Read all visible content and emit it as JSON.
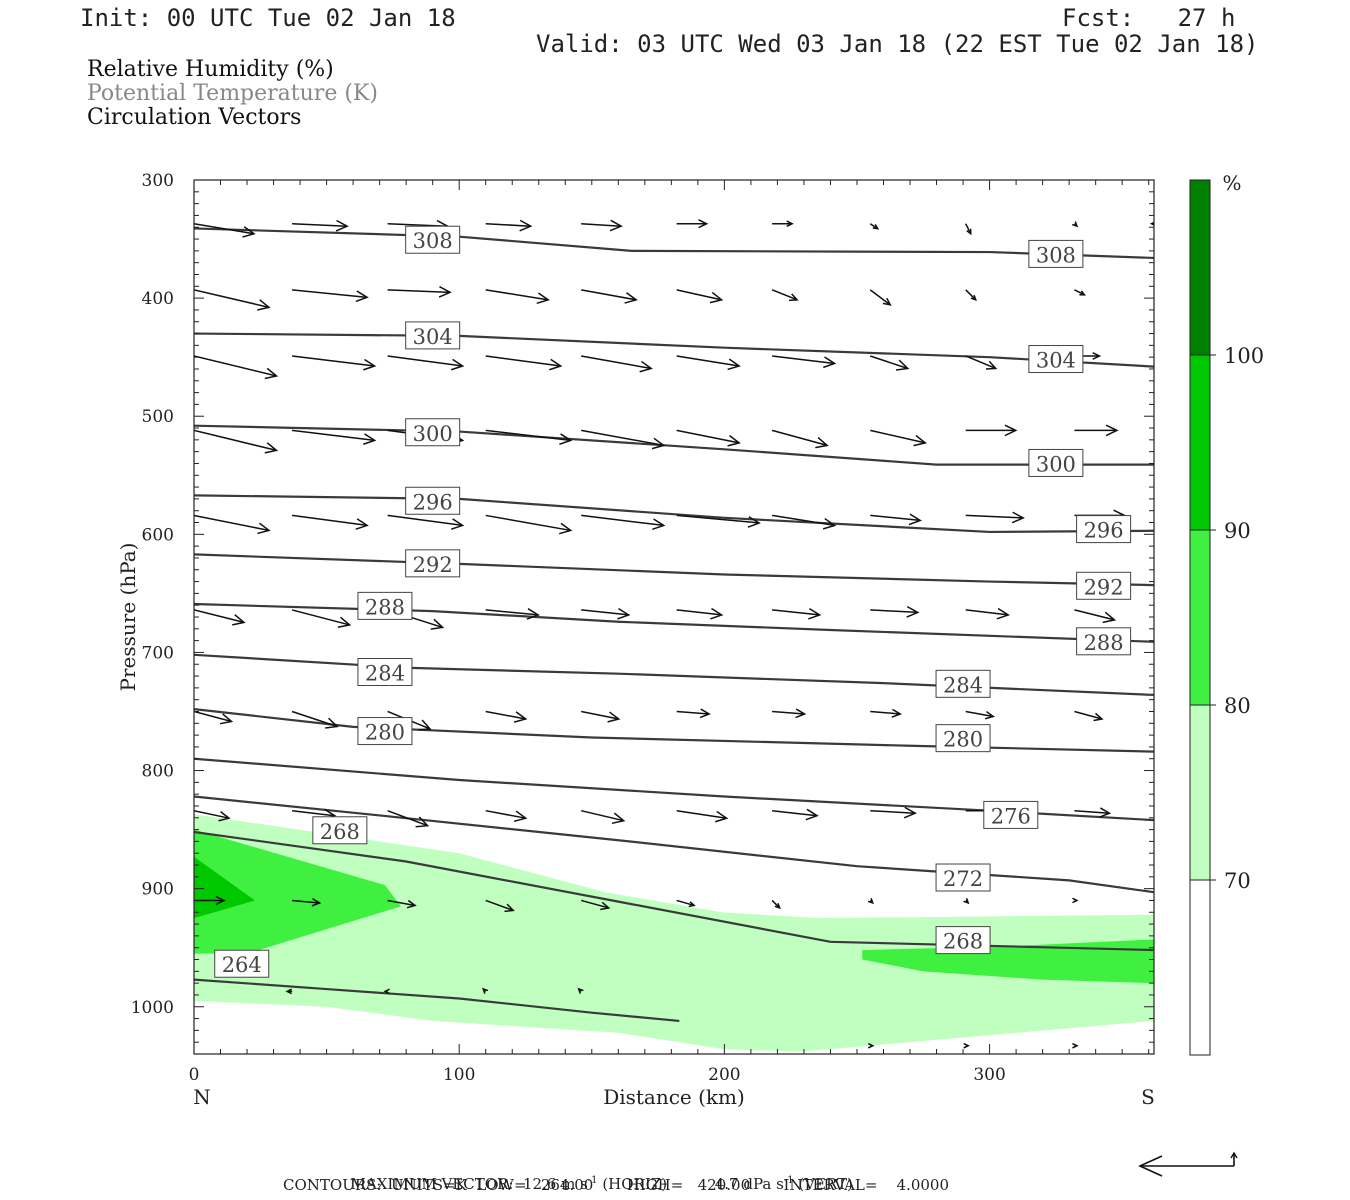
{
  "header": {
    "init": "Init: 00 UTC Tue 02 Jan 18",
    "fcst": "Fcst:   27 h",
    "valid": "Valid: 03 UTC Wed 03 Jan 18 (22 EST Tue 02 Jan 18)"
  },
  "legend": {
    "line1": "Relative Humidity (%)",
    "line2": "Potential Temperature (K)",
    "line3": "Circulation Vectors"
  },
  "footer": {
    "max_vector_label": "MAXIMUM VECTOR:",
    "max_vector_horiz": "12.6 m s",
    "horiz_tag": "(HORIZ)",
    "max_vector_vert": "4.7 dPa s",
    "vert_tag": "(VERT)",
    "exp": "-1",
    "contours": "CONTOURS:  UNITS=K  LOW=   264.00       HIGH=   420.00       INTERVAL=    4.0000"
  },
  "colors": {
    "rh_70_80": "#c0ffc0",
    "rh_80_90": "#40f040",
    "rh_90_100": "#00c800",
    "rh_100": "#008000",
    "theta": "#3a3a3a",
    "vector": "#111111"
  },
  "chart_data": {
    "type": "cross-section",
    "xlabel": "Distance (km)",
    "ylabel": "Pressure (hPa)",
    "xlim": [
      0,
      362
    ],
    "ylim": [
      300,
      1040
    ],
    "x_ticks": [
      0,
      100,
      200,
      300
    ],
    "y_ticks": [
      300,
      400,
      500,
      600,
      700,
      800,
      900,
      1000
    ],
    "x_end_labels": {
      "left": "N",
      "right": "S"
    },
    "colorbar": {
      "unit": "%",
      "levels": [
        70,
        80,
        90,
        100
      ],
      "colors": [
        "#ffffff",
        "#c0ffc0",
        "#40f040",
        "#00c800",
        "#008000"
      ]
    },
    "theta_contours": [
      {
        "value": 264,
        "label": "264",
        "points": [
          [
            0,
            977
          ],
          [
            50,
            985
          ],
          [
            100,
            993
          ],
          [
            150,
            1005
          ],
          [
            183,
            1012
          ]
        ],
        "labels_at": [
          [
            18,
            964
          ]
        ]
      },
      {
        "value": 268,
        "label": "268",
        "points": [
          [
            0,
            852
          ],
          [
            80,
            877
          ],
          [
            160,
            911
          ],
          [
            240,
            945
          ],
          [
            362,
            952
          ]
        ],
        "labels_at": [
          [
            55,
            851
          ],
          [
            290,
            944
          ]
        ]
      },
      {
        "value": 272,
        "label": "272",
        "points": [
          [
            0,
            822
          ],
          [
            70,
            838
          ],
          [
            160,
            859
          ],
          [
            250,
            881
          ],
          [
            330,
            893
          ],
          [
            362,
            903
          ]
        ],
        "labels_at": [
          [
            290,
            891
          ]
        ]
      },
      {
        "value": 276,
        "label": "276",
        "points": [
          [
            0,
            790
          ],
          [
            100,
            808
          ],
          [
            200,
            822
          ],
          [
            300,
            834
          ],
          [
            362,
            842
          ]
        ],
        "labels_at": [
          [
            308,
            838
          ]
        ]
      },
      {
        "value": 280,
        "label": "280",
        "points": [
          [
            0,
            748
          ],
          [
            60,
            763
          ],
          [
            150,
            772
          ],
          [
            270,
            779
          ],
          [
            362,
            784
          ]
        ],
        "labels_at": [
          [
            72,
            767
          ],
          [
            290,
            773
          ]
        ]
      },
      {
        "value": 284,
        "label": "284",
        "points": [
          [
            0,
            702
          ],
          [
            80,
            713
          ],
          [
            160,
            718
          ],
          [
            260,
            726
          ],
          [
            362,
            736
          ]
        ],
        "labels_at": [
          [
            72,
            717
          ],
          [
            290,
            727
          ]
        ]
      },
      {
        "value": 288,
        "label": "288",
        "points": [
          [
            0,
            659
          ],
          [
            90,
            665
          ],
          [
            160,
            674
          ],
          [
            240,
            681
          ],
          [
            362,
            691
          ]
        ],
        "labels_at": [
          [
            72,
            661
          ],
          [
            343,
            691
          ]
        ]
      },
      {
        "value": 292,
        "label": "292",
        "points": [
          [
            0,
            617
          ],
          [
            100,
            625
          ],
          [
            200,
            634
          ],
          [
            300,
            640
          ],
          [
            362,
            643
          ]
        ],
        "labels_at": [
          [
            90,
            625
          ],
          [
            343,
            644
          ]
        ]
      },
      {
        "value": 296,
        "label": "296",
        "points": [
          [
            0,
            567
          ],
          [
            100,
            570
          ],
          [
            200,
            586
          ],
          [
            300,
            598
          ],
          [
            362,
            597
          ]
        ],
        "labels_at": [
          [
            90,
            572
          ],
          [
            343,
            596
          ]
        ]
      },
      {
        "value": 300,
        "label": "300",
        "points": [
          [
            0,
            508
          ],
          [
            100,
            513
          ],
          [
            200,
            528
          ],
          [
            280,
            541
          ],
          [
            362,
            541
          ]
        ],
        "labels_at": [
          [
            90,
            514
          ],
          [
            325,
            540
          ]
        ]
      },
      {
        "value": 304,
        "label": "304",
        "points": [
          [
            0,
            430
          ],
          [
            100,
            432
          ],
          [
            200,
            442
          ],
          [
            300,
            450
          ],
          [
            362,
            458
          ]
        ],
        "labels_at": [
          [
            90,
            432
          ],
          [
            325,
            452
          ]
        ]
      },
      {
        "value": 308,
        "label": "308",
        "points": [
          [
            0,
            341
          ],
          [
            100,
            348
          ],
          [
            165,
            360
          ],
          [
            300,
            361
          ],
          [
            362,
            366
          ]
        ],
        "labels_at": [
          [
            90,
            351
          ],
          [
            325,
            363
          ]
        ]
      }
    ],
    "rh_regions": [
      {
        "level": 70,
        "points": [
          [
            0,
            837
          ],
          [
            100,
            870
          ],
          [
            155,
            903
          ],
          [
            199,
            920
          ],
          [
            236,
            925
          ],
          [
            362,
            922
          ],
          [
            362,
            1012
          ],
          [
            290,
            1026
          ],
          [
            229,
            1038
          ],
          [
            200,
            1036
          ],
          [
            160,
            1022
          ],
          [
            90,
            1012
          ],
          [
            50,
            1000
          ],
          [
            0,
            995
          ]
        ]
      },
      {
        "level": 80,
        "points": [
          [
            0,
            850
          ],
          [
            72,
            897
          ],
          [
            78,
            915
          ],
          [
            20,
            955
          ],
          [
            0,
            955
          ]
        ]
      },
      {
        "level": 80,
        "points": [
          [
            252,
            952
          ],
          [
            305,
            949
          ],
          [
            362,
            943
          ],
          [
            362,
            980
          ],
          [
            320,
            977
          ],
          [
            275,
            970
          ],
          [
            252,
            960
          ]
        ]
      },
      {
        "level": 90,
        "points": [
          [
            0,
            873
          ],
          [
            23,
            910
          ],
          [
            0,
            925
          ]
        ]
      }
    ],
    "vector_rows": [
      {
        "p": 337,
        "x": [
          0,
          37,
          73,
          110,
          146,
          182,
          218,
          255,
          291,
          332,
          362
        ],
        "u": [
          24,
          22,
          24,
          18,
          16,
          12,
          8,
          3,
          2,
          1,
          -1
        ],
        "w": [
          -4,
          -1,
          -1,
          -1,
          -1,
          0,
          0,
          -2,
          -4,
          -1,
          0
        ]
      },
      {
        "p": 393,
        "x": [
          0,
          37,
          73,
          110,
          146,
          182,
          218,
          255,
          291,
          332
        ],
        "u": [
          30,
          30,
          25,
          25,
          22,
          18,
          10,
          8,
          4,
          4
        ],
        "w": [
          -7,
          -3,
          -1,
          -4,
          -4,
          -4,
          -4,
          -6,
          -4,
          -2
        ]
      },
      {
        "p": 449,
        "x": [
          0,
          37,
          73,
          110,
          146,
          182,
          218,
          255,
          291,
          332
        ],
        "u": [
          33,
          33,
          30,
          30,
          28,
          25,
          25,
          15,
          12,
          10
        ],
        "w": [
          -8,
          -4,
          -4,
          -4,
          -5,
          -4,
          -3,
          -5,
          -5,
          0
        ]
      },
      {
        "p": 512,
        "x": [
          0,
          37,
          73,
          110,
          146,
          182,
          218,
          255,
          291,
          332
        ],
        "u": [
          33,
          33,
          30,
          34,
          33,
          25,
          22,
          22,
          20,
          17
        ],
        "w": [
          -8,
          -4,
          -4,
          -4,
          -6,
          -5,
          -6,
          -5,
          0,
          0
        ]
      },
      {
        "p": 584,
        "x": [
          0,
          37,
          73,
          110,
          146,
          182,
          218,
          255,
          291,
          332
        ],
        "u": [
          30,
          30,
          30,
          34,
          33,
          33,
          25,
          20,
          23,
          20
        ],
        "w": [
          -6,
          -4,
          -4,
          -6,
          -4,
          -3,
          -4,
          -2,
          -1,
          0
        ]
      },
      {
        "p": 664,
        "x": [
          0,
          37,
          73,
          110,
          146,
          182,
          218,
          255,
          291,
          332
        ],
        "u": [
          20,
          23,
          22,
          21,
          19,
          18,
          19,
          19,
          17,
          16
        ],
        "w": [
          -5,
          -6,
          -7,
          -2,
          -2,
          -2,
          -2,
          -1,
          -2,
          -4
        ]
      },
      {
        "p": 750,
        "x": [
          0,
          37,
          73,
          110,
          146,
          182,
          218,
          255,
          291,
          332
        ],
        "u": [
          15,
          18,
          17,
          16,
          15,
          13,
          13,
          12,
          11,
          11
        ],
        "w": [
          -4,
          -6,
          -7,
          -3,
          -3,
          -1,
          -1,
          -1,
          -2,
          -3
        ]
      },
      {
        "p": 834,
        "x": [
          0,
          37,
          73,
          110,
          146,
          182,
          218,
          255,
          291,
          332
        ],
        "u": [
          14,
          17,
          16,
          16,
          17,
          20,
          18,
          18,
          12,
          14
        ],
        "w": [
          -3,
          -2,
          -6,
          -3,
          -4,
          -3,
          -2,
          -1,
          0,
          -1
        ]
      },
      {
        "p": 910,
        "x": [
          0,
          37,
          73,
          110,
          146,
          182,
          218,
          255,
          291,
          332
        ],
        "u": [
          12,
          11,
          11,
          11,
          11,
          7,
          3,
          1,
          1,
          1
        ],
        "w": [
          0,
          -1,
          -2,
          -4,
          -3,
          -2,
          -3,
          -1,
          -1,
          0
        ]
      },
      {
        "p": 987,
        "x": [
          0,
          37,
          73,
          110,
          146,
          182,
          218,
          255,
          291,
          332
        ],
        "u": [
          -2,
          -2,
          -1,
          -1,
          -1,
          0,
          0,
          0,
          0,
          0
        ],
        "w": [
          1,
          0,
          0,
          1,
          1,
          0,
          0,
          0,
          0,
          0
        ]
      },
      {
        "p": 1033,
        "x": [
          255,
          291,
          332
        ],
        "u": [
          1,
          1,
          1
        ],
        "w": [
          0,
          0,
          0
        ]
      }
    ]
  }
}
